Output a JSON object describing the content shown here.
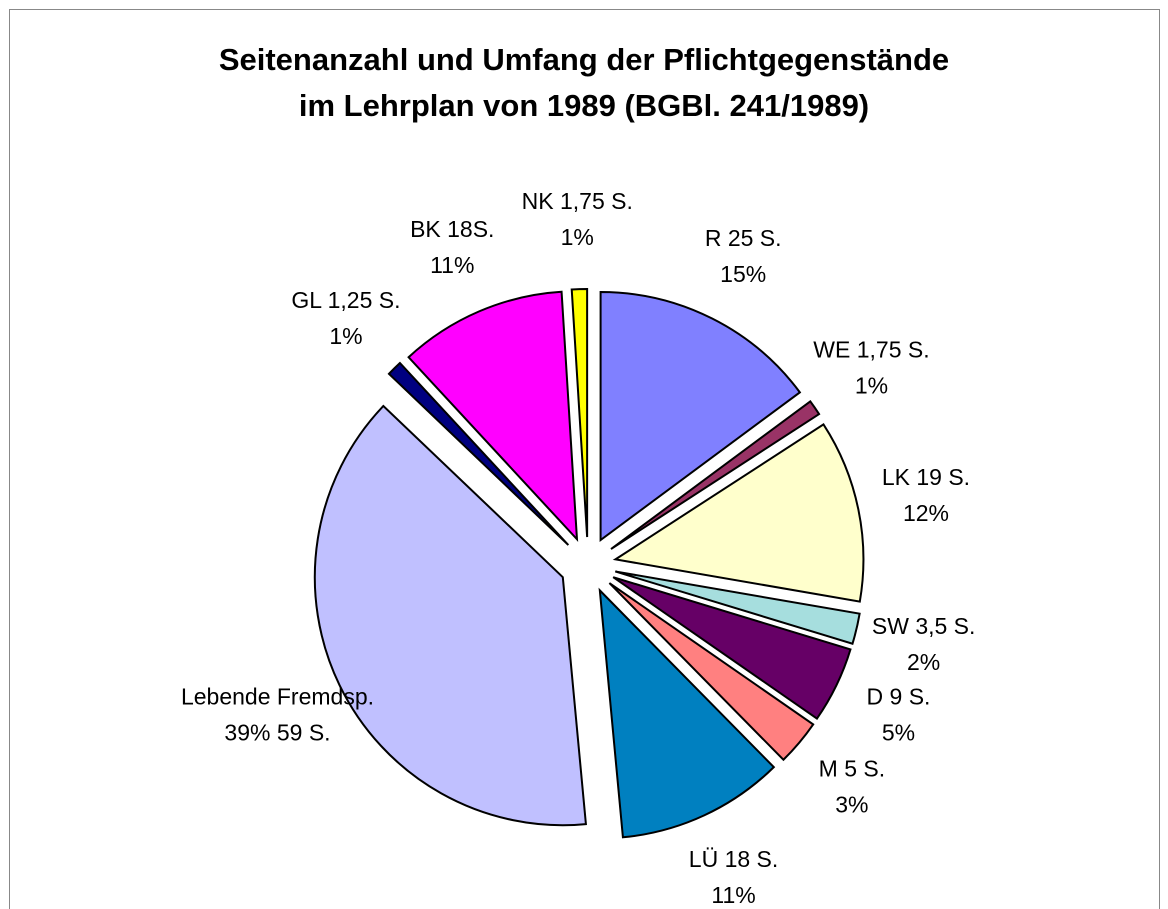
{
  "chart_data": {
    "type": "pie",
    "title": "Seitenanzahl und Umfang der Pflichtgegenstände",
    "subtitle": "im Lehrplan von 1989 (BGBl. 241/1989)",
    "categories": [
      "R 25 S.",
      "WE 1,75 S.",
      "LK 19 S.",
      "SW 3,5 S.",
      "D 9 S.",
      "M 5 S.",
      "LÜ 18 S.",
      "Lebende Fremdsp.",
      "GL 1,25 S.",
      "BK 18S.",
      "NK 1,75 S."
    ],
    "values": [
      15,
      1,
      12,
      2,
      5,
      3,
      11,
      39,
      1,
      11,
      1
    ],
    "value_labels": [
      "15%",
      "1%",
      "12%",
      "2%",
      "5%",
      "3%",
      "11%",
      "39% 59 S.",
      "1%",
      "11%",
      "1%"
    ],
    "colors": [
      "#8080ff",
      "#993366",
      "#ffffcc",
      "#a6dede",
      "#660066",
      "#ff8080",
      "#0080c0",
      "#c0c0ff",
      "#000080",
      "#ff00ff",
      "#ffff00"
    ]
  }
}
